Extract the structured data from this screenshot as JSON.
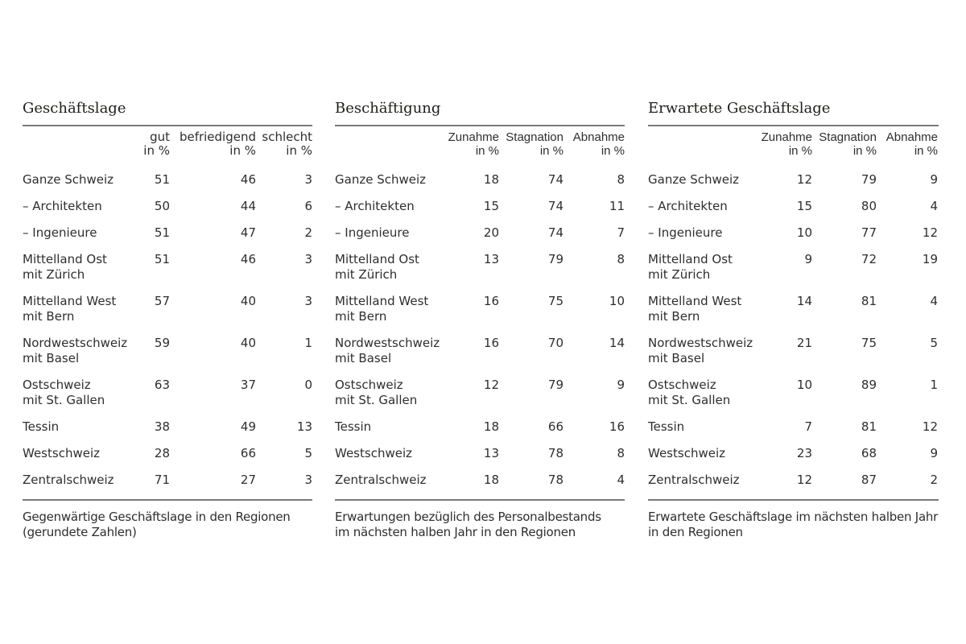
{
  "page": {
    "background_color": "#ffffff",
    "text_color": "#2e2e2e",
    "rule_color": "#7a7a7a"
  },
  "tables": [
    {
      "title": "Geschäftslage",
      "columns": [
        {
          "label": "gut",
          "unit": "in %"
        },
        {
          "label": "befriedigend",
          "unit": "in %"
        },
        {
          "label": "schlecht",
          "unit": "in %"
        }
      ],
      "rows": [
        {
          "label": "Ganze Schweiz",
          "values": [
            51,
            46,
            3
          ]
        },
        {
          "label": "– Architekten",
          "values": [
            50,
            44,
            6
          ]
        },
        {
          "label": "– Ingenieure",
          "values": [
            51,
            47,
            2
          ]
        },
        {
          "label": [
            "Mittelland Ost",
            "mit Zürich"
          ],
          "values": [
            51,
            46,
            3
          ]
        },
        {
          "label": [
            "Mittelland West",
            "mit Bern"
          ],
          "values": [
            57,
            40,
            3
          ]
        },
        {
          "label": [
            "Nordwestschweiz",
            "mit Basel"
          ],
          "values": [
            59,
            40,
            1
          ]
        },
        {
          "label": [
            "Ostschweiz",
            "mit St. Gallen"
          ],
          "values": [
            63,
            37,
            0
          ]
        },
        {
          "label": "Tessin",
          "values": [
            38,
            49,
            13
          ]
        },
        {
          "label": "Westschweiz",
          "values": [
            28,
            66,
            5
          ]
        },
        {
          "label": "Zentralschweiz",
          "values": [
            71,
            27,
            3
          ]
        }
      ],
      "footnote": [
        "Gegenwärtige Geschäftslage in den Regionen",
        "(gerundete Zahlen)"
      ]
    },
    {
      "title": "Beschäftigung",
      "columns": [
        {
          "label": "Zunahme",
          "unit": "in %"
        },
        {
          "label": "Stagnation",
          "unit": "in %"
        },
        {
          "label": "Abnahme",
          "unit": "in %"
        }
      ],
      "rows": [
        {
          "label": "Ganze Schweiz",
          "values": [
            18,
            74,
            8
          ]
        },
        {
          "label": "– Architekten",
          "values": [
            15,
            74,
            11
          ]
        },
        {
          "label": "– Ingenieure",
          "values": [
            20,
            74,
            7
          ]
        },
        {
          "label": [
            "Mittelland Ost",
            "mit Zürich"
          ],
          "values": [
            13,
            79,
            8
          ]
        },
        {
          "label": [
            "Mittelland West",
            "mit Bern"
          ],
          "values": [
            16,
            75,
            10
          ]
        },
        {
          "label": [
            "Nordwestschweiz",
            "mit Basel"
          ],
          "values": [
            16,
            70,
            14
          ]
        },
        {
          "label": [
            "Ostschweiz",
            "mit St. Gallen"
          ],
          "values": [
            12,
            79,
            9
          ]
        },
        {
          "label": "Tessin",
          "values": [
            18,
            66,
            16
          ]
        },
        {
          "label": "Westschweiz",
          "values": [
            13,
            78,
            8
          ]
        },
        {
          "label": "Zentralschweiz",
          "values": [
            18,
            78,
            4
          ]
        }
      ],
      "footnote": [
        "Erwartungen bezüglich des Personalbestands",
        "im nächsten halben Jahr in den Regionen"
      ]
    },
    {
      "title": "Erwartete Geschäftslage",
      "columns": [
        {
          "label": "Zunahme",
          "unit": "in %"
        },
        {
          "label": "Stagnation",
          "unit": "in %"
        },
        {
          "label": "Abnahme",
          "unit": "in %"
        }
      ],
      "rows": [
        {
          "label": "Ganze Schweiz",
          "values": [
            12,
            79,
            9
          ]
        },
        {
          "label": "– Architekten",
          "values": [
            15,
            80,
            4
          ]
        },
        {
          "label": "– Ingenieure",
          "values": [
            10,
            77,
            12
          ]
        },
        {
          "label": [
            "Mittelland Ost",
            "mit Zürich"
          ],
          "values": [
            9,
            72,
            19
          ]
        },
        {
          "label": [
            "Mittelland West",
            "mit Bern"
          ],
          "values": [
            14,
            81,
            4
          ]
        },
        {
          "label": [
            "Nordwestschweiz",
            "mit Basel"
          ],
          "values": [
            21,
            75,
            5
          ]
        },
        {
          "label": [
            "Ostschweiz",
            "mit St. Gallen"
          ],
          "values": [
            10,
            89,
            1
          ]
        },
        {
          "label": "Tessin",
          "values": [
            7,
            81,
            12
          ]
        },
        {
          "label": "Westschweiz",
          "values": [
            23,
            68,
            9
          ]
        },
        {
          "label": "Zentralschweiz",
          "values": [
            12,
            87,
            2
          ]
        }
      ],
      "footnote": [
        "Erwartete Geschäftslage im nächsten halben Jahr",
        "in den Regionen"
      ]
    }
  ]
}
